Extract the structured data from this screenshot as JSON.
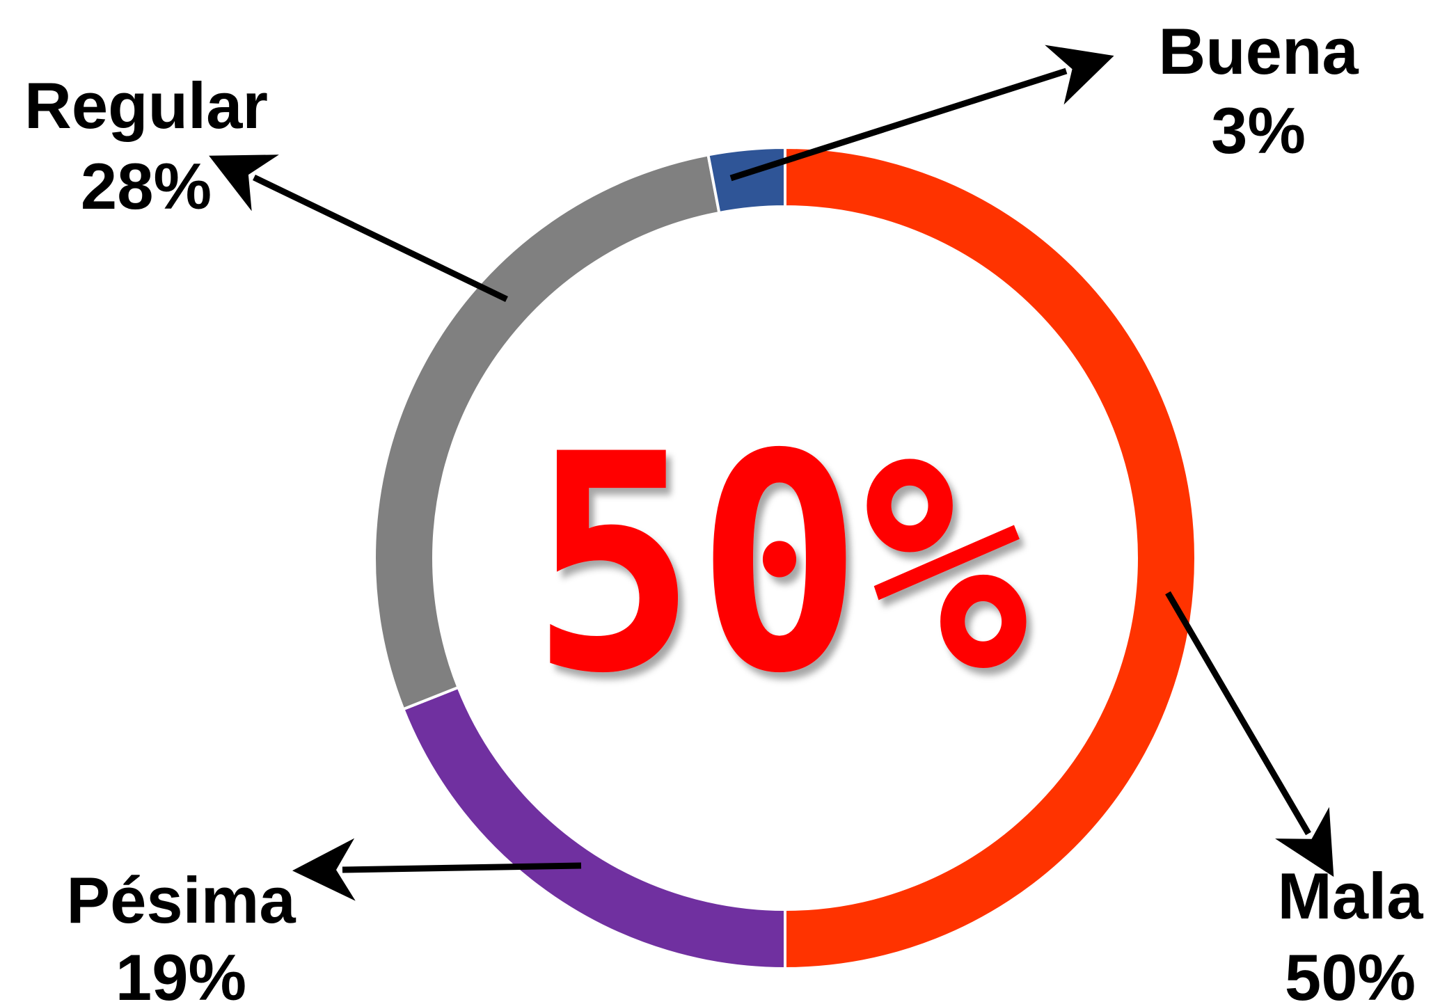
{
  "chart_data": {
    "type": "pie",
    "variant": "donut",
    "center_label": "50%",
    "slices": [
      {
        "label": "Mala",
        "value": 50,
        "value_label": "50%",
        "color": "#ff3300"
      },
      {
        "label": "Pésima",
        "value": 19,
        "value_label": "19%",
        "color": "#7030a0"
      },
      {
        "label": "Regular",
        "value": 28,
        "value_label": "28%",
        "color": "#808080"
      },
      {
        "label": "Buena",
        "value": 3,
        "value_label": "3%",
        "color": "#2f5597"
      }
    ],
    "colors": {
      "center_text": "#ff0000",
      "arrows": "#000000",
      "labels": "#000000"
    }
  }
}
